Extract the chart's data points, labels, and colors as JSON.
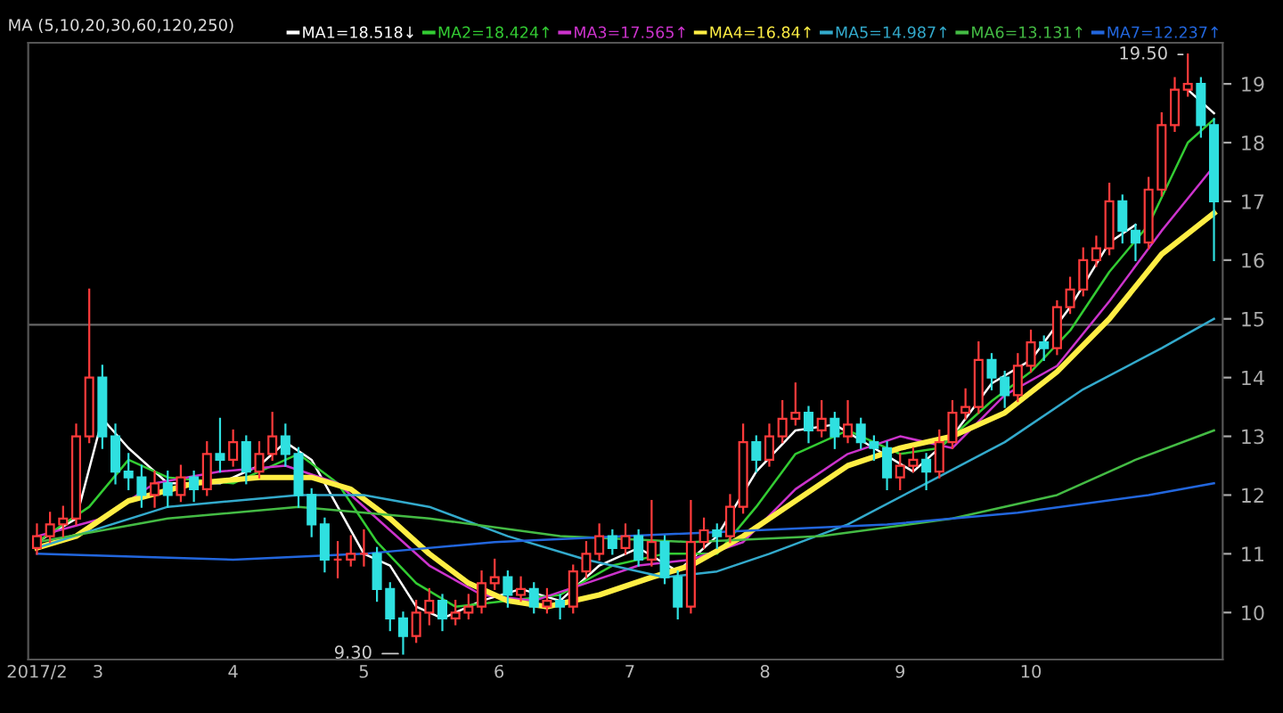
{
  "chart_data": {
    "type": "candlestick",
    "x": [
      "2017-02-15",
      "2017-02-18",
      "2017-02-21",
      "2017-02-24",
      "2017-02-27",
      "2017-03-02",
      "2017-03-05",
      "2017-03-08",
      "2017-03-11",
      "2017-03-14",
      "2017-03-17",
      "2017-03-20",
      "2017-03-23",
      "2017-03-26",
      "2017-03-29",
      "2017-04-01",
      "2017-04-04",
      "2017-04-07",
      "2017-04-10",
      "2017-04-13",
      "2017-04-16",
      "2017-04-19",
      "2017-04-22",
      "2017-04-25",
      "2017-04-28",
      "2017-05-01",
      "2017-05-04",
      "2017-05-07",
      "2017-05-10",
      "2017-05-13",
      "2017-05-16",
      "2017-05-19",
      "2017-05-22",
      "2017-05-25",
      "2017-05-28",
      "2017-05-31",
      "2017-06-03",
      "2017-06-06",
      "2017-06-09",
      "2017-06-12",
      "2017-06-15",
      "2017-06-18",
      "2017-06-21",
      "2017-06-24",
      "2017-06-27",
      "2017-06-30",
      "2017-07-03",
      "2017-07-06",
      "2017-07-09",
      "2017-07-12",
      "2017-07-15",
      "2017-07-18",
      "2017-07-21",
      "2017-07-24",
      "2017-07-27",
      "2017-07-30",
      "2017-08-02",
      "2017-08-05",
      "2017-08-08",
      "2017-08-11",
      "2017-08-14",
      "2017-08-17",
      "2017-08-20",
      "2017-08-23",
      "2017-08-26",
      "2017-08-29",
      "2017-09-01",
      "2017-09-04",
      "2017-09-07",
      "2017-09-10",
      "2017-09-13",
      "2017-09-16",
      "2017-09-19",
      "2017-09-22",
      "2017-09-25",
      "2017-09-28",
      "2017-10-01",
      "2017-10-04",
      "2017-10-07",
      "2017-10-10",
      "2017-10-13",
      "2017-10-16",
      "2017-10-19",
      "2017-10-22",
      "2017-10-25",
      "2017-10-28",
      "2017-10-31",
      "2017-11-03",
      "2017-11-06",
      "2017-11-09",
      "2017-11-12"
    ],
    "ohlc": [
      [
        11.1,
        11.5,
        11.0,
        11.3
      ],
      [
        11.3,
        11.7,
        11.2,
        11.5
      ],
      [
        11.5,
        11.8,
        11.3,
        11.6
      ],
      [
        11.6,
        13.2,
        11.5,
        13.0
      ],
      [
        13.0,
        15.5,
        12.9,
        14.0
      ],
      [
        14.0,
        14.2,
        12.8,
        13.0
      ],
      [
        13.0,
        13.2,
        12.2,
        12.4
      ],
      [
        12.4,
        12.7,
        12.1,
        12.3
      ],
      [
        12.3,
        12.5,
        11.8,
        12.0
      ],
      [
        12.0,
        12.4,
        11.8,
        12.2
      ],
      [
        12.2,
        12.4,
        11.8,
        12.0
      ],
      [
        12.0,
        12.5,
        11.9,
        12.3
      ],
      [
        12.3,
        12.4,
        11.9,
        12.1
      ],
      [
        12.1,
        12.9,
        12.0,
        12.7
      ],
      [
        12.7,
        13.3,
        12.4,
        12.6
      ],
      [
        12.6,
        13.1,
        12.5,
        12.9
      ],
      [
        12.9,
        13.0,
        12.2,
        12.4
      ],
      [
        12.4,
        12.9,
        12.3,
        12.7
      ],
      [
        12.7,
        13.4,
        12.6,
        13.0
      ],
      [
        13.0,
        13.2,
        12.5,
        12.7
      ],
      [
        12.7,
        12.8,
        11.8,
        12.0
      ],
      [
        12.0,
        12.1,
        11.3,
        11.5
      ],
      [
        11.5,
        11.6,
        10.7,
        10.9
      ],
      [
        10.9,
        11.2,
        10.6,
        10.9
      ],
      [
        10.9,
        11.3,
        10.8,
        11.0
      ],
      [
        11.0,
        11.4,
        10.8,
        11.0
      ],
      [
        11.0,
        11.1,
        10.2,
        10.4
      ],
      [
        10.4,
        10.5,
        9.7,
        9.9
      ],
      [
        9.9,
        10.0,
        9.3,
        9.6
      ],
      [
        9.6,
        10.2,
        9.5,
        10.0
      ],
      [
        10.0,
        10.4,
        9.8,
        10.2
      ],
      [
        10.2,
        10.3,
        9.7,
        9.9
      ],
      [
        9.9,
        10.2,
        9.8,
        10.0
      ],
      [
        10.0,
        10.3,
        9.9,
        10.1
      ],
      [
        10.1,
        10.7,
        10.0,
        10.5
      ],
      [
        10.5,
        10.9,
        10.4,
        10.6
      ],
      [
        10.6,
        10.7,
        10.1,
        10.3
      ],
      [
        10.3,
        10.6,
        10.2,
        10.4
      ],
      [
        10.4,
        10.5,
        10.0,
        10.1
      ],
      [
        10.1,
        10.4,
        10.0,
        10.2
      ],
      [
        10.2,
        10.3,
        9.9,
        10.1
      ],
      [
        10.1,
        10.8,
        10.0,
        10.7
      ],
      [
        10.7,
        11.2,
        10.6,
        11.0
      ],
      [
        11.0,
        11.5,
        10.9,
        11.3
      ],
      [
        11.3,
        11.4,
        11.0,
        11.1
      ],
      [
        11.1,
        11.5,
        11.0,
        11.3
      ],
      [
        11.3,
        11.4,
        10.8,
        10.9
      ],
      [
        10.9,
        11.9,
        10.8,
        11.2
      ],
      [
        11.2,
        11.3,
        10.5,
        10.6
      ],
      [
        10.6,
        10.7,
        9.9,
        10.1
      ],
      [
        10.1,
        11.9,
        10.0,
        11.2
      ],
      [
        11.2,
        11.6,
        11.1,
        11.4
      ],
      [
        11.4,
        11.5,
        11.1,
        11.3
      ],
      [
        11.3,
        12.0,
        11.2,
        11.8
      ],
      [
        11.8,
        13.2,
        11.7,
        12.9
      ],
      [
        12.9,
        13.0,
        12.4,
        12.6
      ],
      [
        12.6,
        13.2,
        12.5,
        13.0
      ],
      [
        13.0,
        13.6,
        12.9,
        13.3
      ],
      [
        13.3,
        13.9,
        13.2,
        13.4
      ],
      [
        13.4,
        13.5,
        12.9,
        13.1
      ],
      [
        13.1,
        13.6,
        13.0,
        13.3
      ],
      [
        13.3,
        13.4,
        12.8,
        13.0
      ],
      [
        13.0,
        13.6,
        12.9,
        13.2
      ],
      [
        13.2,
        13.3,
        12.8,
        12.9
      ],
      [
        12.9,
        13.0,
        12.6,
        12.8
      ],
      [
        12.8,
        12.9,
        12.1,
        12.3
      ],
      [
        12.3,
        12.7,
        12.1,
        12.5
      ],
      [
        12.5,
        12.8,
        12.4,
        12.6
      ],
      [
        12.6,
        12.7,
        12.1,
        12.4
      ],
      [
        12.4,
        13.1,
        12.3,
        12.9
      ],
      [
        12.9,
        13.6,
        12.8,
        13.4
      ],
      [
        13.4,
        13.8,
        13.3,
        13.5
      ],
      [
        13.5,
        14.6,
        13.4,
        14.3
      ],
      [
        14.3,
        14.4,
        13.8,
        14.0
      ],
      [
        14.0,
        14.1,
        13.5,
        13.7
      ],
      [
        13.7,
        14.4,
        13.6,
        14.2
      ],
      [
        14.2,
        14.8,
        14.1,
        14.6
      ],
      [
        14.6,
        14.7,
        14.3,
        14.5
      ],
      [
        14.5,
        15.3,
        14.4,
        15.2
      ],
      [
        15.2,
        15.7,
        15.1,
        15.5
      ],
      [
        15.5,
        16.2,
        15.4,
        16.0
      ],
      [
        16.0,
        16.4,
        15.9,
        16.2
      ],
      [
        16.2,
        17.3,
        16.1,
        17.0
      ],
      [
        17.0,
        17.1,
        16.3,
        16.5
      ],
      [
        16.5,
        16.6,
        16.0,
        16.3
      ],
      [
        16.3,
        17.4,
        16.2,
        17.2
      ],
      [
        17.2,
        18.5,
        17.1,
        18.3
      ],
      [
        18.3,
        19.1,
        18.2,
        18.9
      ],
      [
        18.9,
        19.5,
        18.8,
        19.0
      ],
      [
        19.0,
        19.1,
        18.1,
        18.3
      ],
      [
        18.3,
        18.4,
        16.0,
        17.0
      ]
    ],
    "series": [
      {
        "type": "line",
        "name": "MA1=18.518↓",
        "color": "#ffffff",
        "x": [
          "2017-02-15",
          "2017-02-24",
          "2017-03-02",
          "2017-03-08",
          "2017-03-17",
          "2017-03-29",
          "2017-04-07",
          "2017-04-13",
          "2017-04-19",
          "2017-04-25",
          "2017-05-01",
          "2017-05-07",
          "2017-05-13",
          "2017-05-19",
          "2017-05-28",
          "2017-06-06",
          "2017-06-15",
          "2017-06-24",
          "2017-07-03",
          "2017-07-12",
          "2017-07-21",
          "2017-07-30",
          "2017-08-08",
          "2017-08-17",
          "2017-08-26",
          "2017-09-04",
          "2017-09-13",
          "2017-09-22",
          "2017-10-01",
          "2017-10-10",
          "2017-10-19",
          "2017-10-25",
          "2017-10-31",
          "2017-11-06",
          "2017-11-12"
        ],
        "values": [
          11.2,
          11.6,
          13.3,
          12.8,
          12.2,
          12.2,
          12.5,
          12.9,
          12.6,
          11.8,
          11.0,
          10.8,
          10.1,
          9.9,
          10.2,
          10.4,
          10.2,
          10.8,
          11.1,
          10.7,
          11.3,
          12.4,
          13.1,
          13.2,
          12.8,
          12.4,
          13.0,
          13.9,
          14.3,
          15.2,
          16.3,
          16.6,
          null,
          18.9,
          18.5
        ]
      },
      {
        "type": "line",
        "name": "MA2=18.424↑",
        "color": "#33cc33",
        "x": [
          "2017-02-15",
          "2017-02-27",
          "2017-03-08",
          "2017-03-17",
          "2017-04-01",
          "2017-04-16",
          "2017-04-25",
          "2017-05-04",
          "2017-05-13",
          "2017-05-22",
          "2017-06-03",
          "2017-06-15",
          "2017-06-27",
          "2017-07-09",
          "2017-07-21",
          "2017-07-30",
          "2017-08-08",
          "2017-08-20",
          "2017-09-01",
          "2017-09-10",
          "2017-09-22",
          "2017-10-01",
          "2017-10-10",
          "2017-10-19",
          "2017-10-28",
          "2017-11-06",
          "2017-11-12"
        ],
        "values": [
          11.2,
          11.8,
          12.6,
          12.3,
          12.2,
          12.7,
          12.2,
          11.2,
          10.5,
          10.1,
          10.2,
          10.3,
          10.8,
          11.0,
          11.0,
          11.8,
          12.7,
          13.1,
          12.7,
          12.8,
          13.6,
          14.1,
          14.8,
          15.8,
          16.6,
          18.0,
          18.4
        ]
      },
      {
        "type": "line",
        "name": "MA3=17.565↑",
        "color": "#cc33cc",
        "x": [
          "2017-02-15",
          "2017-03-02",
          "2017-03-14",
          "2017-03-29",
          "2017-04-13",
          "2017-04-25",
          "2017-05-07",
          "2017-05-16",
          "2017-05-28",
          "2017-06-09",
          "2017-06-21",
          "2017-07-03",
          "2017-07-15",
          "2017-07-27",
          "2017-08-08",
          "2017-08-20",
          "2017-09-01",
          "2017-09-13",
          "2017-09-25",
          "2017-10-07",
          "2017-10-19",
          "2017-10-31",
          "2017-11-12"
        ],
        "values": [
          11.3,
          11.6,
          12.2,
          12.4,
          12.5,
          12.2,
          11.4,
          10.8,
          10.3,
          10.2,
          10.5,
          10.8,
          10.9,
          11.2,
          12.1,
          12.7,
          13.0,
          12.8,
          13.7,
          14.2,
          15.3,
          16.5,
          17.6
        ]
      },
      {
        "type": "line",
        "name": "MA4=16.84↑",
        "color": "#ffee44",
        "x": [
          "2017-02-15",
          "2017-02-24",
          "2017-03-08",
          "2017-03-23",
          "2017-04-07",
          "2017-04-19",
          "2017-04-28",
          "2017-05-07",
          "2017-05-16",
          "2017-05-25",
          "2017-06-03",
          "2017-06-12",
          "2017-06-24",
          "2017-07-06",
          "2017-07-15",
          "2017-07-27",
          "2017-08-08",
          "2017-08-20",
          "2017-09-01",
          "2017-09-13",
          "2017-09-25",
          "2017-10-07",
          "2017-10-19",
          "2017-10-31",
          "2017-11-12"
        ],
        "values": [
          11.1,
          11.3,
          11.9,
          12.2,
          12.3,
          12.3,
          12.1,
          11.6,
          11.0,
          10.5,
          10.2,
          10.1,
          10.3,
          10.6,
          10.8,
          11.3,
          11.9,
          12.5,
          12.8,
          13.0,
          13.4,
          14.1,
          15.0,
          16.1,
          16.8
        ]
      },
      {
        "type": "line",
        "name": "MA5=14.987↑",
        "color": "#33aacc",
        "x": [
          "2017-02-15",
          "2017-03-17",
          "2017-04-16",
          "2017-05-01",
          "2017-05-16",
          "2017-06-03",
          "2017-06-21",
          "2017-07-09",
          "2017-07-21",
          "2017-08-02",
          "2017-08-20",
          "2017-09-07",
          "2017-09-25",
          "2017-10-13",
          "2017-10-31",
          "2017-11-12"
        ],
        "values": [
          11.1,
          11.8,
          12.0,
          12.0,
          11.8,
          11.3,
          10.9,
          10.6,
          10.7,
          11.0,
          11.5,
          12.2,
          12.9,
          13.8,
          14.5,
          15.0
        ]
      },
      {
        "type": "line",
        "name": "MA6=13.131↑",
        "color": "#44bb44",
        "x": [
          "2017-02-15",
          "2017-03-17",
          "2017-04-16",
          "2017-05-16",
          "2017-06-15",
          "2017-07-15",
          "2017-08-14",
          "2017-09-13",
          "2017-10-07",
          "2017-10-25",
          "2017-11-12"
        ],
        "values": [
          11.2,
          11.6,
          11.8,
          11.6,
          11.3,
          11.2,
          11.3,
          11.6,
          12.0,
          12.6,
          13.1
        ]
      },
      {
        "type": "line",
        "name": "MA7=12.237↑",
        "color": "#2266dd",
        "x": [
          "2017-02-15",
          "2017-04-01",
          "2017-05-01",
          "2017-05-31",
          "2017-06-30",
          "2017-07-30",
          "2017-08-29",
          "2017-09-28",
          "2017-10-28",
          "2017-11-12"
        ],
        "values": [
          11.0,
          10.9,
          11.0,
          11.2,
          11.3,
          11.4,
          11.5,
          11.7,
          12.0,
          12.2
        ]
      }
    ],
    "legend": "top right",
    "annotations": [
      "MA (5,10,20,30,60,120,250)",
      {
        "text": "9.30",
        "x": "2017-05-10",
        "y": 9.3
      },
      {
        "text": "19.50",
        "x": "2017-11-06",
        "y": 19.5
      }
    ],
    "ref_lines": [
      {
        "axis": "y",
        "value": 14.9,
        "color": "#666666"
      }
    ],
    "xlim": [
      "2017-02-13",
      "2017-11-14"
    ],
    "xticks": [
      {
        "value": "2017-02-15",
        "label": "2017/2"
      },
      {
        "value": "2017-03",
        "label": "3"
      },
      {
        "value": "2017-04",
        "label": "4"
      },
      {
        "value": "2017-05",
        "label": "5"
      },
      {
        "value": "2017-06",
        "label": "6"
      },
      {
        "value": "2017-07",
        "label": "7"
      },
      {
        "value": "2017-08",
        "label": "8"
      },
      {
        "value": "2017-09",
        "label": "9"
      },
      {
        "value": "2017-10",
        "label": "10"
      }
    ],
    "ylim": [
      9.2,
      19.7
    ],
    "yticks": [
      10,
      11,
      12,
      13,
      14,
      15,
      16,
      17,
      18,
      19
    ]
  }
}
